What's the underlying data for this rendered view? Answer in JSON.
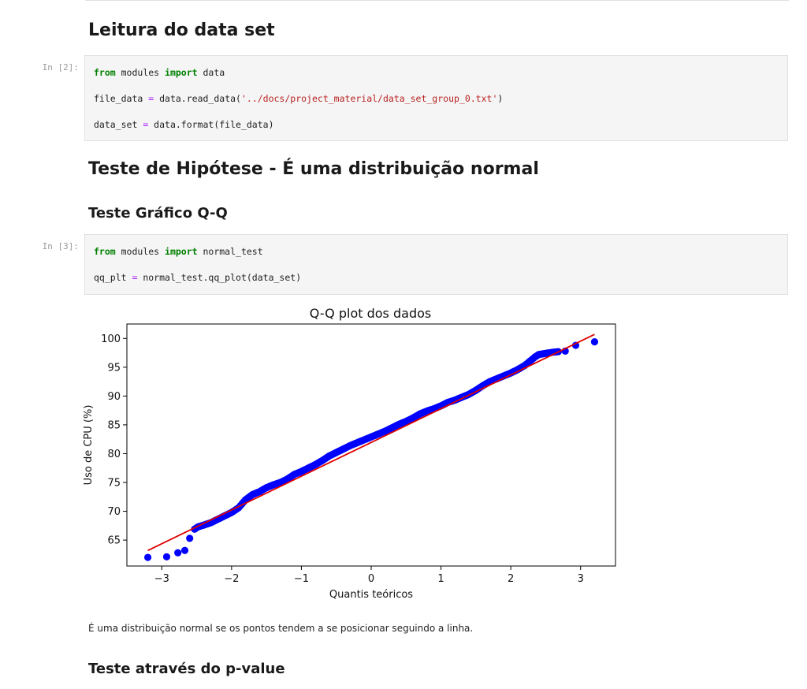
{
  "section1": {
    "title": "Leitura do data set"
  },
  "cell2": {
    "prompt": "In [2]:",
    "line1": {
      "kw1": "from",
      "mid": " modules ",
      "kw2": "import",
      "tail": " data"
    },
    "line2": {
      "pre": "file_data ",
      "eq": "=",
      "call": " data.read_data(",
      "str": "'../docs/project_material/data_set_group_0.txt'",
      "end": ")"
    },
    "line3": {
      "pre": "data_set ",
      "eq": "=",
      "call": " data.format(file_data)"
    }
  },
  "section2": {
    "title": "Teste de Hipótese - É uma distribuição normal"
  },
  "section3": {
    "title": "Teste Gráfico Q-Q"
  },
  "cell3": {
    "prompt": "In [3]:",
    "line1": {
      "kw1": "from",
      "mid": " modules ",
      "kw2": "import",
      "tail": " normal_test"
    },
    "line2": {
      "pre": "qq_plt ",
      "eq": "=",
      "call": " normal_test.qq_plot(data_set)"
    }
  },
  "chart_data": {
    "type": "scatter",
    "title": "Q-Q plot dos dados",
    "xlabel": "Quantis teóricos",
    "ylabel": "Uso de CPU (%)",
    "xlim": [
      -3.5,
      3.5
    ],
    "ylim": [
      60.5,
      102.5
    ],
    "xticks": [
      -3,
      -2,
      -1,
      0,
      1,
      2,
      3
    ],
    "xtick_labels": [
      "−3",
      "−2",
      "−1",
      "0",
      "1",
      "2",
      "3"
    ],
    "yticks": [
      65,
      70,
      75,
      80,
      85,
      90,
      95,
      100
    ],
    "ytick_labels": [
      "65",
      "70",
      "75",
      "80",
      "85",
      "90",
      "95",
      "100"
    ],
    "grid": false,
    "point_color": "#0000ff",
    "line_color": "#dd0000",
    "fit_line": {
      "x": [
        -3.2,
        3.2
      ],
      "y": [
        63.2,
        100.7
      ]
    },
    "points": {
      "x": [
        -3.2,
        -2.93,
        -2.77,
        -2.67,
        -2.6,
        -2.53,
        -2.48,
        -2.4,
        -2.3,
        -2.2,
        -2.1,
        -2.0,
        -1.9,
        -1.8,
        -1.7,
        -1.6,
        -1.5,
        -1.4,
        -1.3,
        -1.2,
        -1.1,
        -1.0,
        -0.9,
        -0.8,
        -0.7,
        -0.6,
        -0.5,
        -0.4,
        -0.3,
        -0.2,
        -0.1,
        0.0,
        0.1,
        0.2,
        0.3,
        0.4,
        0.5,
        0.6,
        0.7,
        0.8,
        0.9,
        1.0,
        1.1,
        1.2,
        1.3,
        1.4,
        1.5,
        1.6,
        1.7,
        1.8,
        1.9,
        2.0,
        2.1,
        2.2,
        2.3,
        2.35,
        2.4,
        2.5,
        2.6,
        2.68,
        2.78,
        2.93,
        3.2
      ],
      "y": [
        62.0,
        62.1,
        62.8,
        63.2,
        65.3,
        66.9,
        67.3,
        67.6,
        68.0,
        68.6,
        69.2,
        69.8,
        70.6,
        72.0,
        72.9,
        73.4,
        74.1,
        74.6,
        75.0,
        75.6,
        76.4,
        76.9,
        77.5,
        78.1,
        78.8,
        79.6,
        80.2,
        80.8,
        81.4,
        81.9,
        82.4,
        82.9,
        83.4,
        83.9,
        84.5,
        85.1,
        85.6,
        86.2,
        86.9,
        87.4,
        87.8,
        88.3,
        88.9,
        89.3,
        89.8,
        90.3,
        91.0,
        91.8,
        92.5,
        93.0,
        93.5,
        94.0,
        94.6,
        95.3,
        96.3,
        96.8,
        97.2,
        97.4,
        97.6,
        97.7,
        97.8,
        98.8,
        99.4
      ]
    }
  },
  "md_text": "É uma distribuição normal se os pontos tendem a se posicionar seguindo a linha.",
  "section4": {
    "title": "Teste através do p-value"
  }
}
